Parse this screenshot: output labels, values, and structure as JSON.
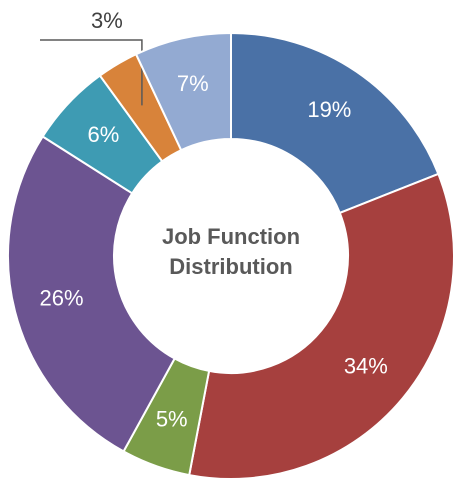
{
  "chart_data": {
    "type": "donut",
    "title": "Job Function Distribution",
    "values": [
      19,
      34,
      5,
      26,
      6,
      3,
      7
    ],
    "value_labels": [
      "19%",
      "34%",
      "5%",
      "26%",
      "6%",
      "3%",
      "7%"
    ],
    "colors": [
      "#4a71a6",
      "#a6403e",
      "#7b9d48",
      "#6c5491",
      "#3e9bb3",
      "#d8833a",
      "#93aad2"
    ]
  }
}
